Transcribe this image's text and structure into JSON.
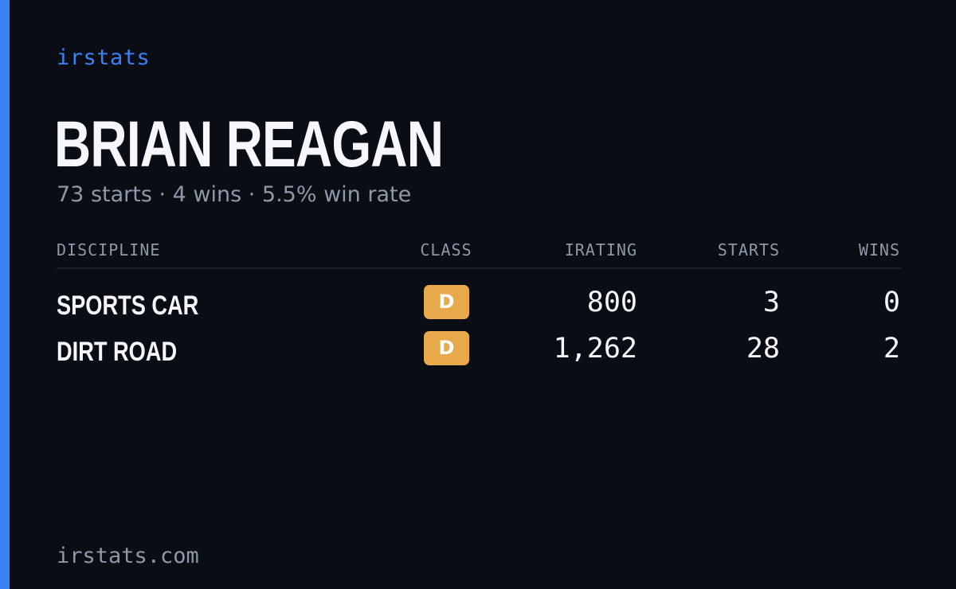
{
  "brand": "irstats",
  "driver": {
    "name": "BRIAN REAGAN",
    "summary": "73 starts · 4 wins · 5.5% win rate"
  },
  "table": {
    "headers": {
      "discipline": "DISCIPLINE",
      "class": "CLASS",
      "irating": "IRATING",
      "starts": "STARTS",
      "wins": "WINS"
    },
    "rows": [
      {
        "discipline": "SPORTS CAR",
        "class": "D",
        "irating": "800",
        "starts": "3",
        "wins": "0"
      },
      {
        "discipline": "DIRT ROAD",
        "class": "D",
        "irating": "1,262",
        "starts": "28",
        "wins": "2"
      }
    ]
  },
  "footer": {
    "url": "irstats.com"
  },
  "colors": {
    "background": "#0a0d14",
    "accent": "#3b82f6",
    "class_d_badge": "#e8a94a",
    "primary_text": "#f5f7fb",
    "muted_text": "#8e98a9"
  }
}
